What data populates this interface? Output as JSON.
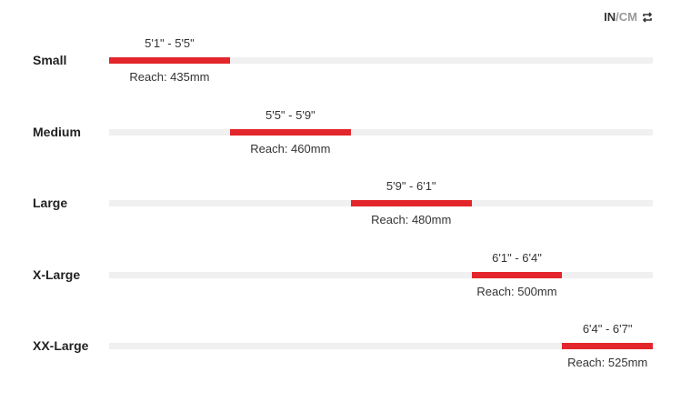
{
  "unit_toggle": {
    "in": "IN",
    "sep": "/",
    "cm": "CM",
    "icon": "swap-arrows-icon"
  },
  "accent": "#e3262b",
  "axis_inches": [
    61,
    79
  ],
  "sizes": [
    {
      "name": "Small",
      "height": "5'1\" - 5'5\"",
      "reach": "Reach: 435mm",
      "from": 61,
      "to": 65
    },
    {
      "name": "Medium",
      "height": "5'5\" - 5'9\"",
      "reach": "Reach: 460mm",
      "from": 65,
      "to": 69
    },
    {
      "name": "Large",
      "height": "5'9\" - 6'1\"",
      "reach": "Reach: 480mm",
      "from": 69,
      "to": 73
    },
    {
      "name": "X-Large",
      "height": "6'1\" - 6'4\"",
      "reach": "Reach: 500mm",
      "from": 73,
      "to": 76
    },
    {
      "name": "XX-Large",
      "height": "6'4\" - 6'7\"",
      "reach": "Reach: 525mm",
      "from": 76,
      "to": 79
    }
  ]
}
